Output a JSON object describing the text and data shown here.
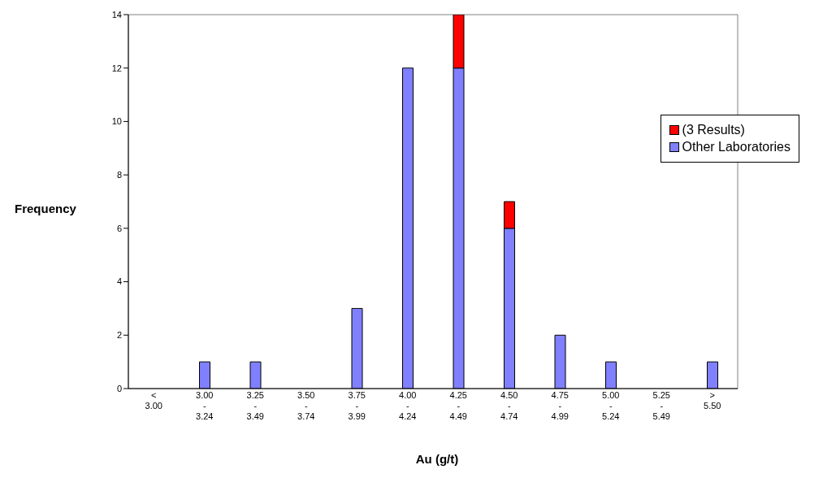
{
  "chart_data": {
    "type": "bar",
    "stacked": true,
    "xlabel": "Au (g/t)",
    "ylabel": "Frequency",
    "categories": [
      "< 3.00",
      "3.00 - 3.24",
      "3.25 - 3.49",
      "3.50 - 3.74",
      "3.75 - 3.99",
      "4.00 - 4.24",
      "4.25 - 4.49",
      "4.50 - 4.74",
      "4.75 - 4.99",
      "5.00 - 5.24",
      "5.25 - 5.49",
      "> 5.50"
    ],
    "series": [
      {
        "name": "Other Laboratories",
        "color": "#8080ff",
        "values": [
          0,
          1,
          1,
          0,
          3,
          12,
          12,
          6,
          2,
          1,
          0,
          1
        ]
      },
      {
        "name": "(3 Results)",
        "color": "#ff0000",
        "values": [
          0,
          0,
          0,
          0,
          0,
          0,
          2,
          1,
          0,
          0,
          0,
          0
        ]
      }
    ],
    "ylim": [
      0,
      14
    ],
    "yticks": [
      0,
      2,
      4,
      6,
      8,
      10,
      12,
      14
    ],
    "legend": "right"
  }
}
